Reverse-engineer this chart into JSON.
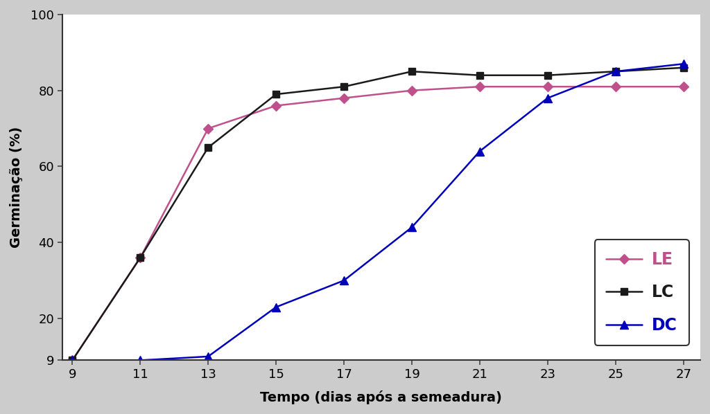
{
  "x": [
    9,
    11,
    13,
    15,
    17,
    19,
    21,
    23,
    25,
    27
  ],
  "LE": [
    9,
    36,
    70,
    76,
    78,
    80,
    81,
    81,
    81,
    81
  ],
  "LC": [
    9,
    36,
    65,
    79,
    81,
    85,
    84,
    84,
    85,
    86
  ],
  "DC": [
    9,
    9,
    10,
    23,
    30,
    44,
    64,
    78,
    85,
    87
  ],
  "LE_color": "#c0508c",
  "LC_color": "#1a1a1a",
  "DC_color": "#0000bb",
  "xlabel": "Tempo (dias após a semeadura)",
  "ylabel": "Germinação (%)",
  "yticks": [
    9,
    20,
    40,
    60,
    80,
    100
  ],
  "xticks": [
    9,
    11,
    13,
    15,
    17,
    19,
    21,
    23,
    25,
    27
  ],
  "ylim": [
    9,
    100
  ],
  "xlim": [
    9,
    27
  ],
  "bg_color": "#cccccc",
  "plot_bg_color": "#ffffff",
  "legend_labels": [
    "LE",
    "LC",
    "DC"
  ],
  "legend_fontsize": 17,
  "axis_label_fontsize": 14,
  "tick_fontsize": 13
}
